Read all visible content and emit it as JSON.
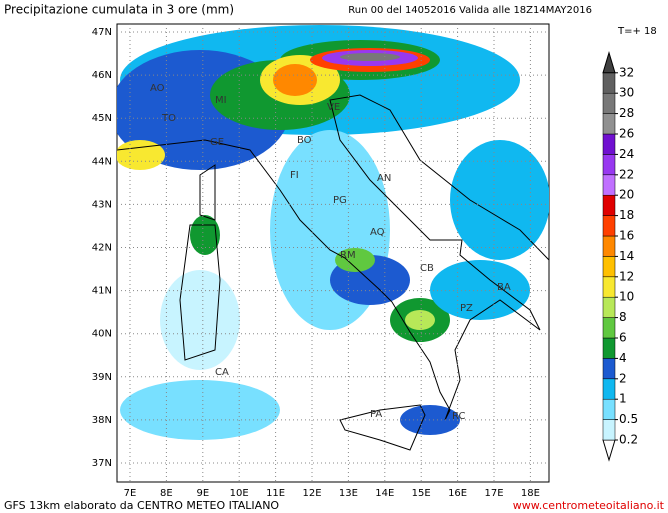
{
  "header": {
    "title": "Precipitazione cumulata in 3 ore (mm)",
    "run": "Run 00 del 14052016  Valida alle 18Z14MAY2016",
    "step": "T=+ 18"
  },
  "map": {
    "lat_labels": [
      "47N",
      "46N",
      "45N",
      "44N",
      "43N",
      "42N",
      "41N",
      "40N",
      "39N",
      "38N",
      "37N"
    ],
    "lon_labels": [
      "7E",
      "8E",
      "9E",
      "10E",
      "11E",
      "12E",
      "13E",
      "14E",
      "15E",
      "16E",
      "17E",
      "18E"
    ],
    "cities": [
      "AO",
      "TO",
      "MI",
      "GE",
      "VE",
      "BO",
      "FI",
      "PG",
      "AN",
      "AQ",
      "RM",
      "CB",
      "BA",
      "PZ",
      "CA",
      "PA",
      "RC"
    ]
  },
  "colorbar": {
    "levels": [
      0.2,
      0.5,
      1,
      2,
      4,
      6,
      8,
      10,
      12,
      14,
      16,
      18,
      20,
      22,
      24,
      26,
      28,
      30,
      32
    ],
    "colors": [
      "#ffffff",
      "#c8f4ff",
      "#78e0ff",
      "#10b8f0",
      "#1c5ad0",
      "#109830",
      "#60c840",
      "#b8e858",
      "#f8e830",
      "#ffc000",
      "#ff8800",
      "#ff4000",
      "#e00000",
      "#c070ff",
      "#9838f0",
      "#7010d0",
      "#909090",
      "#787878",
      "#606060",
      "#404040"
    ]
  },
  "footer": {
    "source": "GFS 13km elaborato da CENTRO METEO ITALIANO",
    "url": "www.centrometeoitaliano.it"
  }
}
